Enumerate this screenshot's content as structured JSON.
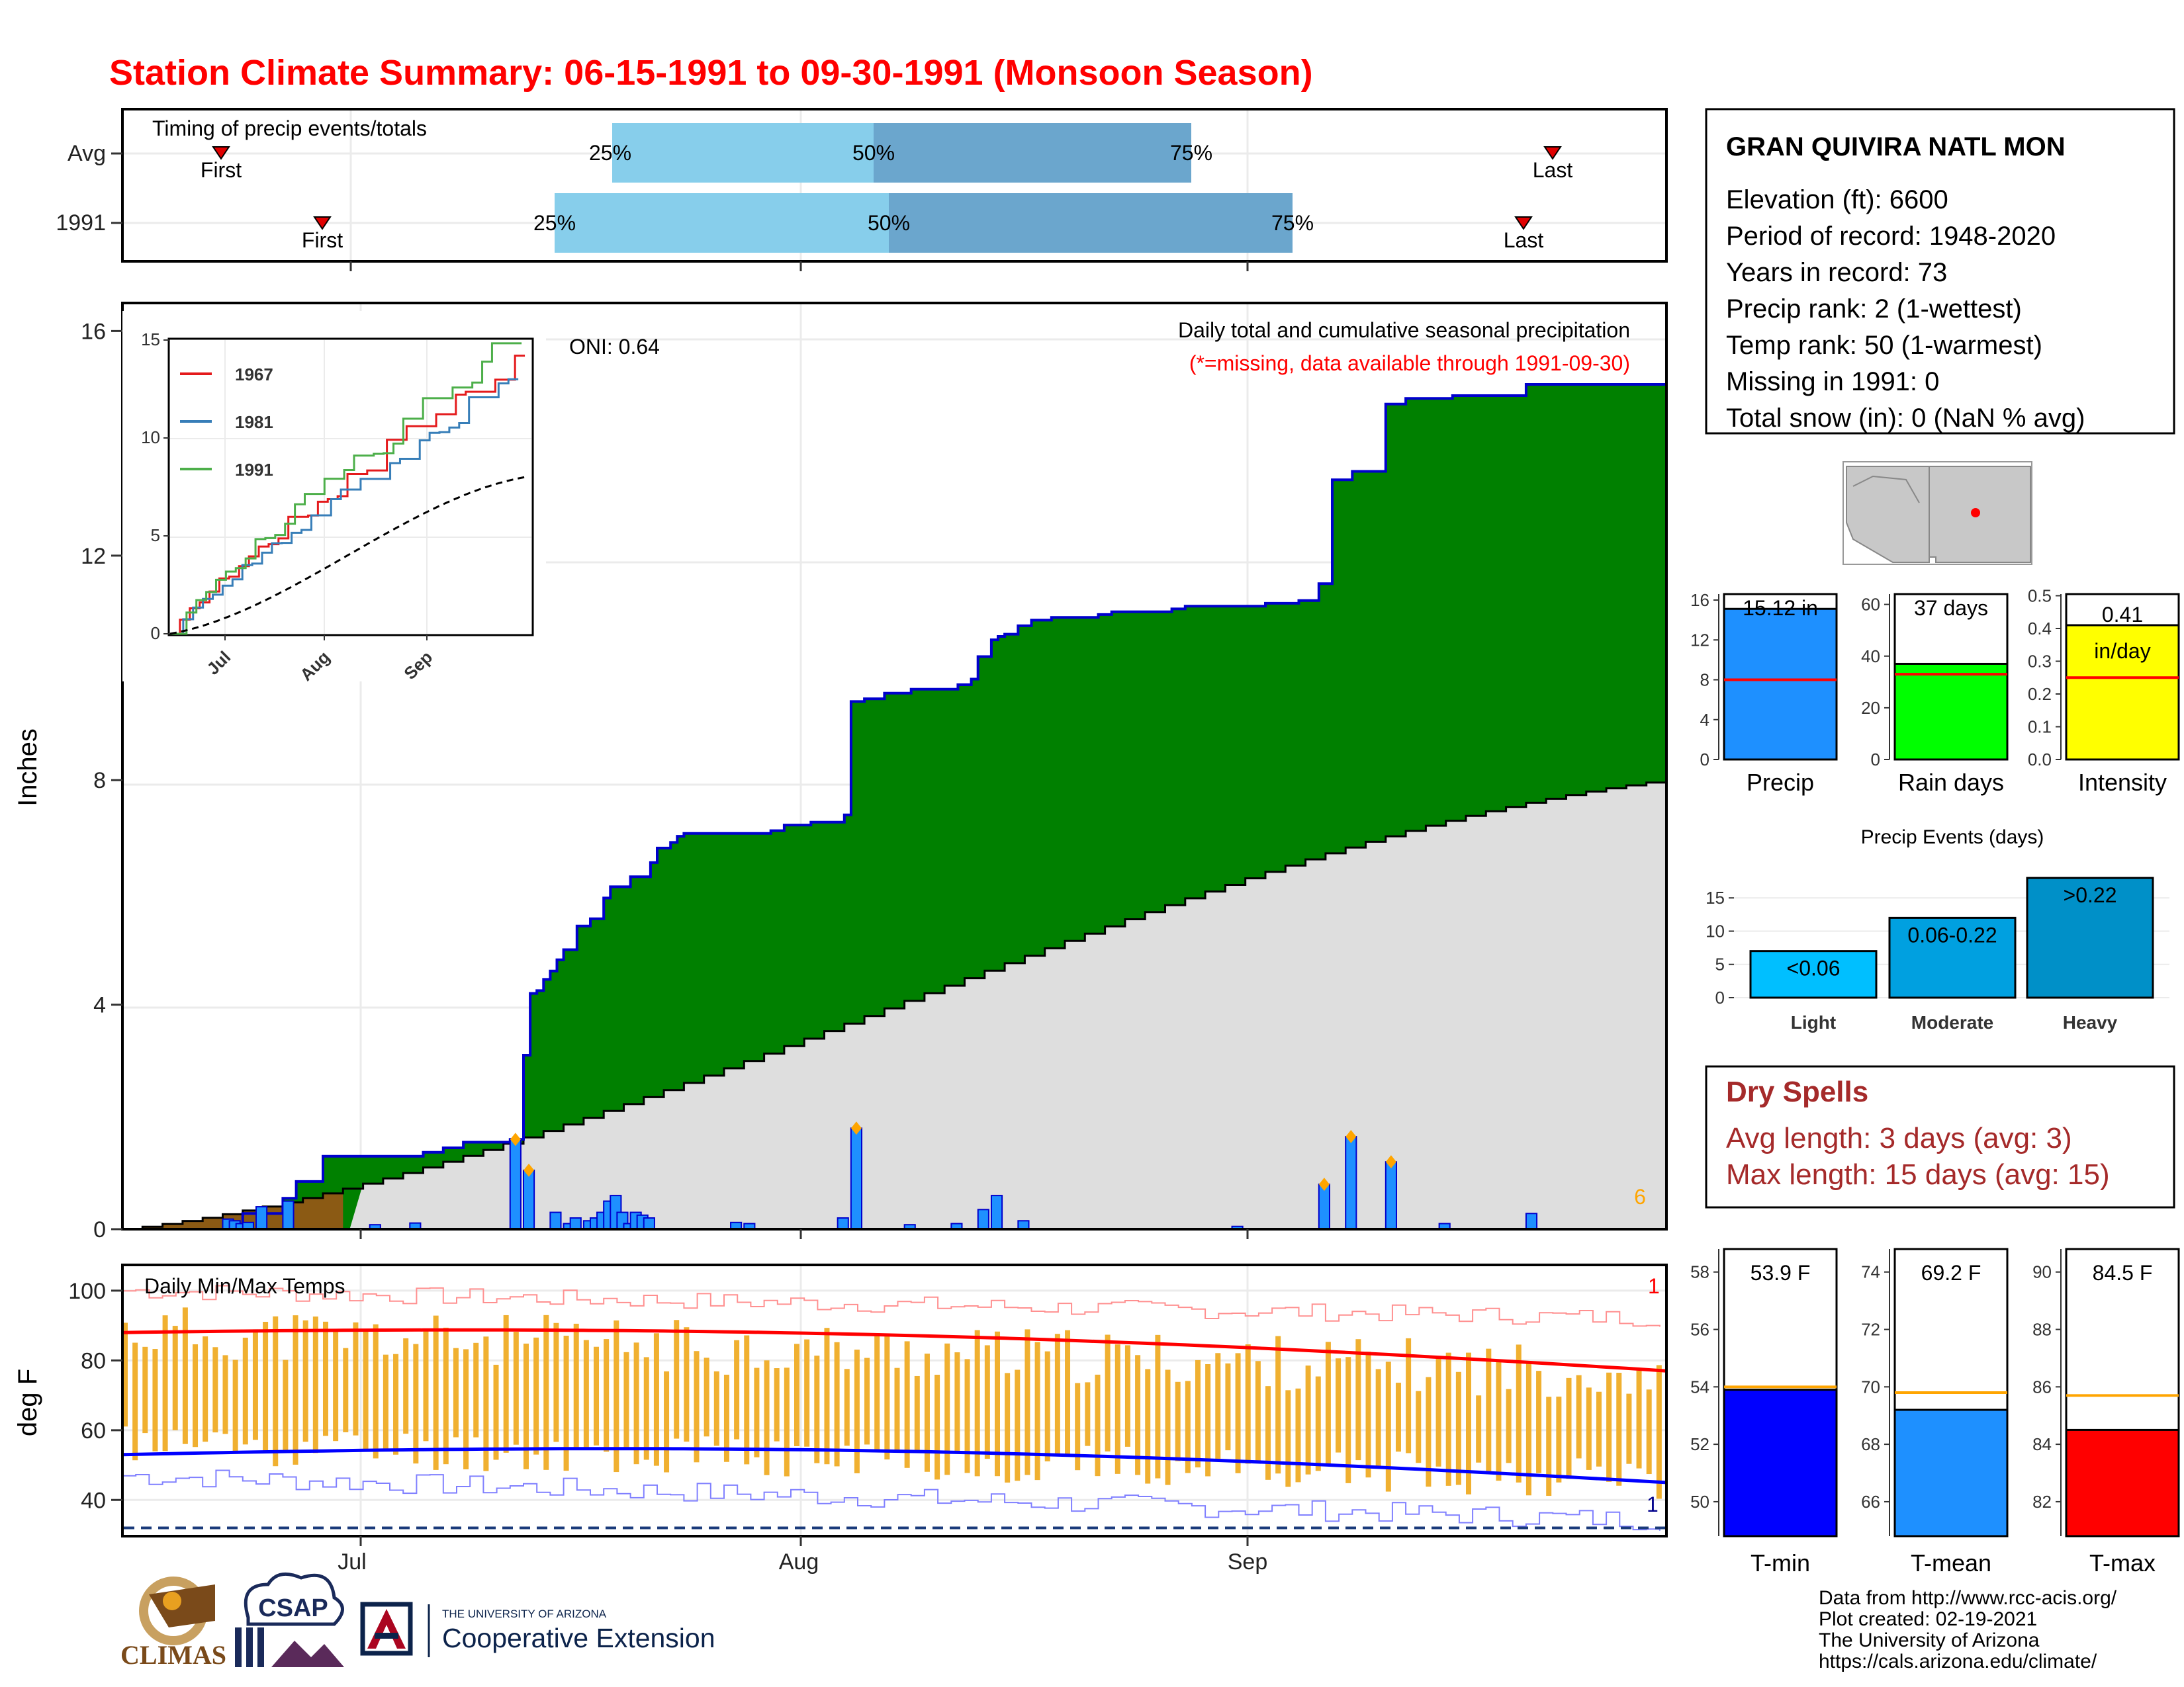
{
  "title": "Station Climate Summary: 06-15-1991 to 09-30-1991 (Monsoon Season)",
  "timing_panel": {
    "label": "Timing of precip events/totals",
    "rows": [
      {
        "name": "Avg",
        "first_label": "First",
        "last_label": "Last",
        "q25": "25%",
        "q50": "50%",
        "q75": "75%"
      },
      {
        "name": "1991",
        "first_label": "First",
        "last_label": "Last",
        "q25": "25%",
        "q50": "50%",
        "q75": "75%"
      }
    ]
  },
  "station_info": {
    "name": "GRAN QUIVIRA NATL MON",
    "lines": [
      "Elevation (ft): 6600",
      "Period of record: 1948-2020",
      "Years in record: 73",
      "Precip rank: 2 (1-wettest)",
      "Temp rank: 50 (1-warmest)",
      "Missing in 1991: 0",
      "Total snow (in): 0 (NaN % avg)"
    ]
  },
  "precip_panel": {
    "ylabel": "Inches",
    "label1": "Daily total and cumulative seasonal precipitation",
    "label2": "(*=missing, data available through 1991-09-30)",
    "oni": "ONI: 0.64",
    "count_label": "6",
    "y_ticks": [
      "0",
      "4",
      "8",
      "12",
      "16"
    ]
  },
  "inset": {
    "legend": [
      "1967",
      "1981",
      "1991"
    ],
    "y_ticks": [
      "0",
      "5",
      "10",
      "15"
    ],
    "x_ticks": [
      "Jul",
      "Aug",
      "Sep"
    ]
  },
  "month_ticks": [
    "Jul",
    "Aug",
    "Sep"
  ],
  "temp_panel": {
    "title": "Daily Min/Max Temps",
    "ylabel": "deg F",
    "y_ticks": [
      "40",
      "60",
      "80",
      "100"
    ],
    "max_count": "1",
    "min_count": "1"
  },
  "summary_bars": {
    "precip": {
      "label": "Precip",
      "value_text": "15.12 in",
      "ticks": [
        "0",
        "4",
        "8",
        "12",
        "16"
      ]
    },
    "rain_days": {
      "label": "Rain days",
      "value_text": "37 days",
      "ticks": [
        "0",
        "20",
        "40",
        "60"
      ]
    },
    "intensity": {
      "label": "Intensity",
      "value_text": "0.41",
      "unit": "in/day",
      "ticks": [
        "0.0",
        "0.1",
        "0.2",
        "0.3",
        "0.4",
        "0.5"
      ]
    }
  },
  "events": {
    "title": "Precip Events (days)",
    "categories": [
      "Light",
      "Moderate",
      "Heavy"
    ],
    "labels": [
      "<0.06",
      "0.06-0.22",
      ">0.22"
    ],
    "ticks": [
      "0",
      "5",
      "10",
      "15"
    ]
  },
  "dry_spells": {
    "title": "Dry Spells",
    "avg": "Avg length: 3 days (avg: 3)",
    "max": "Max length: 15 days (avg: 15)"
  },
  "temp_bars": {
    "tmin": {
      "label": "T-min",
      "value_text": "53.9 F",
      "ticks": [
        "50",
        "52",
        "54",
        "56",
        "58"
      ]
    },
    "tmean": {
      "label": "T-mean",
      "value_text": "69.2 F",
      "ticks": [
        "66",
        "68",
        "70",
        "72",
        "74"
      ]
    },
    "tmax": {
      "label": "T-max",
      "value_text": "84.5 F",
      "ticks": [
        "82",
        "84",
        "86",
        "88",
        "90"
      ]
    }
  },
  "credits": [
    "Data from http://www.rcc-acis.org/",
    "Plot created: 02-19-2021",
    "The University of Arizona",
    "https://cals.arizona.edu/climate/"
  ],
  "logos": {
    "climas": "CLIMAS",
    "csap": "CSAP",
    "ua_line1": "THE UNIVERSITY OF ARIZONA",
    "ua_line2": "Cooperative Extension"
  },
  "chart_data": [
    {
      "type": "area",
      "name": "daily-and-cumulative-precip",
      "x_range": [
        "1991-06-15",
        "1991-09-30"
      ],
      "ylim": [
        0,
        16.5
      ],
      "cumulative_1991": [
        [
          0,
          0
        ],
        [
          18,
          0.28
        ],
        [
          24,
          0.55
        ],
        [
          26,
          0.85
        ],
        [
          30,
          1.3
        ],
        [
          45,
          1.37
        ],
        [
          48,
          1.45
        ],
        [
          51,
          1.55
        ],
        [
          58,
          1.6
        ],
        [
          60,
          3.1
        ],
        [
          61,
          4.2
        ],
        [
          62,
          4.25
        ],
        [
          63,
          4.45
        ],
        [
          64,
          4.6
        ],
        [
          65,
          4.8
        ],
        [
          66,
          4.98
        ],
        [
          68,
          5.4
        ],
        [
          70,
          5.53
        ],
        [
          72,
          5.9
        ],
        [
          73,
          6.1
        ],
        [
          76,
          6.28
        ],
        [
          79,
          6.53
        ],
        [
          80,
          6.79
        ],
        [
          82,
          6.89
        ],
        [
          83,
          7.0
        ],
        [
          84,
          7.05
        ],
        [
          97,
          7.1
        ],
        [
          99,
          7.2
        ],
        [
          103,
          7.25
        ],
        [
          108,
          7.38
        ],
        [
          109,
          9.4
        ],
        [
          111,
          9.45
        ],
        [
          114,
          9.55
        ],
        [
          118,
          9.62
        ],
        [
          125,
          9.7
        ],
        [
          127,
          9.8
        ],
        [
          128,
          10.2
        ],
        [
          130,
          10.5
        ],
        [
          131,
          10.56
        ],
        [
          132,
          10.6
        ],
        [
          134,
          10.75
        ],
        [
          136,
          10.85
        ],
        [
          139,
          10.9
        ],
        [
          146,
          10.95
        ],
        [
          148,
          11.0
        ],
        [
          157,
          11.05
        ],
        [
          159,
          11.1
        ],
        [
          171,
          11.15
        ],
        [
          176,
          11.2
        ],
        [
          179,
          11.5
        ],
        [
          181,
          13.35
        ],
        [
          184,
          13.5
        ],
        [
          189,
          14.7
        ],
        [
          192,
          14.8
        ],
        [
          199,
          14.85
        ],
        [
          210,
          15.05
        ],
        [
          231,
          15.12
        ]
      ],
      "normal_cumulative_end": 8.0,
      "daily_bars": [
        [
          15,
          0.18
        ],
        [
          16,
          0.15
        ],
        [
          17,
          0.1
        ],
        [
          18,
          0.12
        ],
        [
          20,
          0.4
        ],
        [
          24,
          0.5
        ],
        [
          37,
          0.08
        ],
        [
          43,
          0.11
        ],
        [
          58,
          1.6
        ],
        [
          60,
          1.05
        ],
        [
          64,
          0.3
        ],
        [
          66,
          0.1
        ],
        [
          67,
          0.2
        ],
        [
          69,
          0.15
        ],
        [
          70,
          0.2
        ],
        [
          71,
          0.3
        ],
        [
          72,
          0.5
        ],
        [
          73,
          0.6
        ],
        [
          74,
          0.3
        ],
        [
          75,
          0.1
        ],
        [
          76,
          0.3
        ],
        [
          77,
          0.25
        ],
        [
          78,
          0.2
        ],
        [
          91,
          0.12
        ],
        [
          93,
          0.1
        ],
        [
          107,
          0.2
        ],
        [
          109,
          1.8
        ],
        [
          117,
          0.08
        ],
        [
          124,
          0.1
        ],
        [
          128,
          0.35
        ],
        [
          130,
          0.6
        ],
        [
          134,
          0.15
        ],
        [
          166,
          0.05
        ],
        [
          179,
          0.8
        ],
        [
          183,
          1.65
        ],
        [
          189,
          1.2
        ],
        [
          197,
          0.1
        ],
        [
          210,
          0.28
        ]
      ]
    },
    {
      "type": "line",
      "name": "inset-cumulative-comparison",
      "series": [
        {
          "name": "1967",
          "final": 14.2
        },
        {
          "name": "1981",
          "final": 13.0
        },
        {
          "name": "1991",
          "final": 15.12
        }
      ],
      "ylim": [
        0,
        15
      ]
    },
    {
      "type": "line",
      "name": "daily-min-max-temps",
      "ylim": [
        30,
        107
      ],
      "avg_max_start": 88,
      "avg_max_end": 77,
      "avg_min_start": 53,
      "avg_min_end": 45
    },
    {
      "type": "bar",
      "name": "season-totals",
      "categories": [
        "Precip",
        "Rain days",
        "Intensity"
      ],
      "values": [
        15.12,
        37,
        0.41
      ],
      "normals": [
        8.0,
        33,
        0.25
      ]
    },
    {
      "type": "bar",
      "name": "precip-events",
      "categories": [
        "Light",
        "Moderate",
        "Heavy"
      ],
      "values": [
        7,
        12,
        18
      ]
    },
    {
      "type": "bar",
      "name": "temp-means",
      "categories": [
        "T-min",
        "T-mean",
        "T-max"
      ],
      "values": [
        53.9,
        69.2,
        84.5
      ],
      "normals": [
        54.0,
        69.8,
        85.7
      ]
    }
  ]
}
